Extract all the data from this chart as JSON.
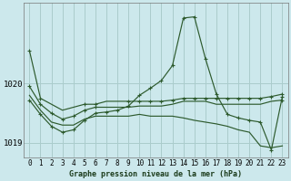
{
  "title": "Graphe pression niveau de la mer (hPa)",
  "background_color": "#cce8ec",
  "grid_color": "#aacccc",
  "line_color": "#2d5a2d",
  "ylim": [
    1018.75,
    1021.35
  ],
  "yticks": [
    1019,
    1020
  ],
  "xlim": [
    -0.5,
    23.5
  ],
  "xticks": [
    0,
    1,
    2,
    3,
    4,
    5,
    6,
    7,
    8,
    9,
    10,
    11,
    12,
    13,
    14,
    15,
    16,
    17,
    18,
    19,
    20,
    21,
    22,
    23
  ],
  "series": [
    [
      1020.55,
      1019.75,
      1019.65,
      1019.55,
      1019.6,
      1019.65,
      1019.65,
      1019.7,
      1019.7,
      1019.7,
      1019.7,
      1019.7,
      1019.7,
      1019.72,
      1019.75,
      1019.75,
      1019.75,
      1019.75,
      1019.75,
      1019.75,
      1019.75,
      1019.75,
      1019.78,
      1019.82
    ],
    [
      1019.95,
      1019.65,
      1019.5,
      1019.4,
      1019.45,
      1019.55,
      1019.6,
      1019.6,
      1019.6,
      1019.6,
      1019.62,
      1019.62,
      1019.62,
      1019.65,
      1019.7,
      1019.7,
      1019.7,
      1019.65,
      1019.65,
      1019.65,
      1019.65,
      1019.65,
      1019.7,
      1019.72
    ],
    [
      1019.8,
      1019.55,
      1019.35,
      1019.3,
      1019.3,
      1019.4,
      1019.45,
      1019.45,
      1019.45,
      1019.45,
      1019.48,
      1019.45,
      1019.45,
      1019.45,
      1019.42,
      1019.38,
      1019.35,
      1019.32,
      1019.28,
      1019.22,
      1019.18,
      1018.95,
      1018.92,
      1018.95
    ],
    [
      1019.72,
      1019.48,
      1019.28,
      1019.18,
      1019.22,
      1019.38,
      1019.5,
      1019.52,
      1019.55,
      1019.62,
      1019.8,
      1019.92,
      1020.05,
      1020.3,
      1021.1,
      1021.12,
      1020.42,
      1019.82,
      1019.48,
      1019.42,
      1019.38,
      1019.35,
      1018.88,
      1019.78
    ]
  ],
  "markers_idx": [
    [
      0,
      1,
      5,
      6,
      9,
      10,
      11,
      12,
      13,
      14,
      15,
      16,
      17,
      18,
      19,
      20,
      21,
      22,
      23
    ],
    [
      0,
      1,
      2,
      3,
      4,
      5,
      6,
      23
    ],
    [],
    [
      0,
      1,
      2,
      3,
      4,
      5,
      6,
      7,
      8,
      9,
      10,
      11,
      12,
      13,
      14,
      15,
      16,
      17,
      18,
      19,
      20,
      21,
      22,
      23
    ]
  ],
  "title_fontsize": 6.0,
  "tick_fontsize": 5.5,
  "ytick_fontsize": 6.5
}
